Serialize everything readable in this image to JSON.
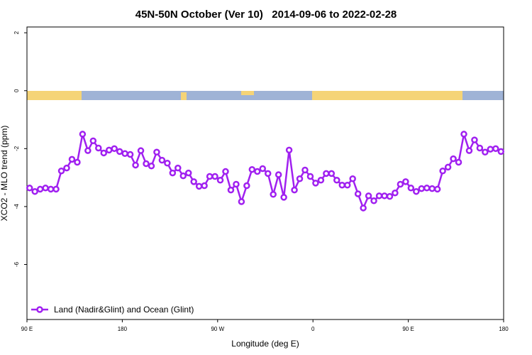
{
  "chart_data": {
    "type": "line",
    "title": "45N-50N October (Ver 10)   2014-09-06 to 2022-02-28",
    "xlabel": "Longitude (deg E)",
    "ylabel": "XCO2 - MLO trend (ppm)",
    "xlim": [
      90,
      540
    ],
    "xticks": [
      {
        "value": 90,
        "label": "90 E"
      },
      180,
      {
        "value": 270,
        "label": "90 W"
      },
      {
        "value": 360,
        "label": "0"
      },
      {
        "value": 450,
        "label": "90 E"
      },
      {
        "value": 540,
        "label": "180"
      }
    ],
    "ylim": [
      -7.9,
      2.2
    ],
    "yticks": [
      2,
      0,
      -2,
      -4,
      -6
    ],
    "legend": "bottom-left",
    "series": [
      {
        "name": "Land (Nadir&Glint) and Ocean (Glint)",
        "color": "#a020f0",
        "x": [
          92.5,
          97.5,
          102.5,
          107.5,
          112.5,
          117.5,
          122.5,
          127.5,
          132.5,
          137.5,
          142.5,
          147.5,
          152.5,
          157.5,
          162.5,
          167.5,
          172.5,
          177.5,
          182.5,
          187.5,
          192.5,
          197.5,
          202.5,
          207.5,
          212.5,
          217.5,
          222.5,
          227.5,
          232.5,
          237.5,
          242.5,
          247.5,
          252.5,
          257.5,
          262.5,
          267.5,
          272.5,
          277.5,
          282.5,
          287.5,
          292.5,
          297.5,
          302.5,
          307.5,
          312.5,
          317.5,
          322.5,
          327.5,
          332.5,
          337.5,
          342.5,
          347.5,
          352.5,
          357.5,
          362.5,
          367.5,
          372.5,
          377.5,
          382.5,
          387.5,
          392.5,
          397.5,
          402.5,
          407.5,
          412.5,
          417.5,
          422.5,
          427.5,
          432.5,
          437.5,
          442.5,
          447.5,
          452.5,
          457.5,
          462.5,
          467.5,
          472.5,
          477.5,
          482.5,
          487.5,
          492.5,
          497.5,
          502.5,
          507.5,
          512.5,
          517.5,
          522.5,
          527.5,
          532.5,
          537.5
        ],
        "values": [
          -3.36,
          -3.48,
          -3.4,
          -3.36,
          -3.4,
          -3.4,
          -2.77,
          -2.67,
          -2.37,
          -2.47,
          -1.5,
          -2.07,
          -1.73,
          -1.98,
          -2.15,
          -2.05,
          -2.0,
          -2.1,
          -2.17,
          -2.2,
          -2.57,
          -2.07,
          -2.52,
          -2.6,
          -2.12,
          -2.4,
          -2.5,
          -2.84,
          -2.67,
          -2.94,
          -2.84,
          -3.14,
          -3.3,
          -3.28,
          -2.96,
          -2.96,
          -3.09,
          -2.79,
          -3.43,
          -3.23,
          -3.83,
          -3.28,
          -2.72,
          -2.79,
          -2.69,
          -2.86,
          -3.58,
          -2.9,
          -3.68,
          -2.05,
          -3.43,
          -3.04,
          -2.74,
          -2.96,
          -3.19,
          -3.09,
          -2.86,
          -2.86,
          -3.09,
          -3.26,
          -3.26,
          -3.04,
          -3.56,
          -4.05,
          -3.63,
          -3.8,
          -3.63,
          -3.63,
          -3.65,
          -3.53,
          -3.23,
          -3.14,
          -3.36,
          -3.48,
          -3.38,
          -3.36,
          -3.38,
          -3.4,
          -2.77,
          -2.64,
          -2.35,
          -2.47,
          -1.5,
          -2.07,
          -1.7,
          -1.98,
          -2.12,
          -2.02,
          -2.0,
          -2.1
        ]
      }
    ]
  }
}
